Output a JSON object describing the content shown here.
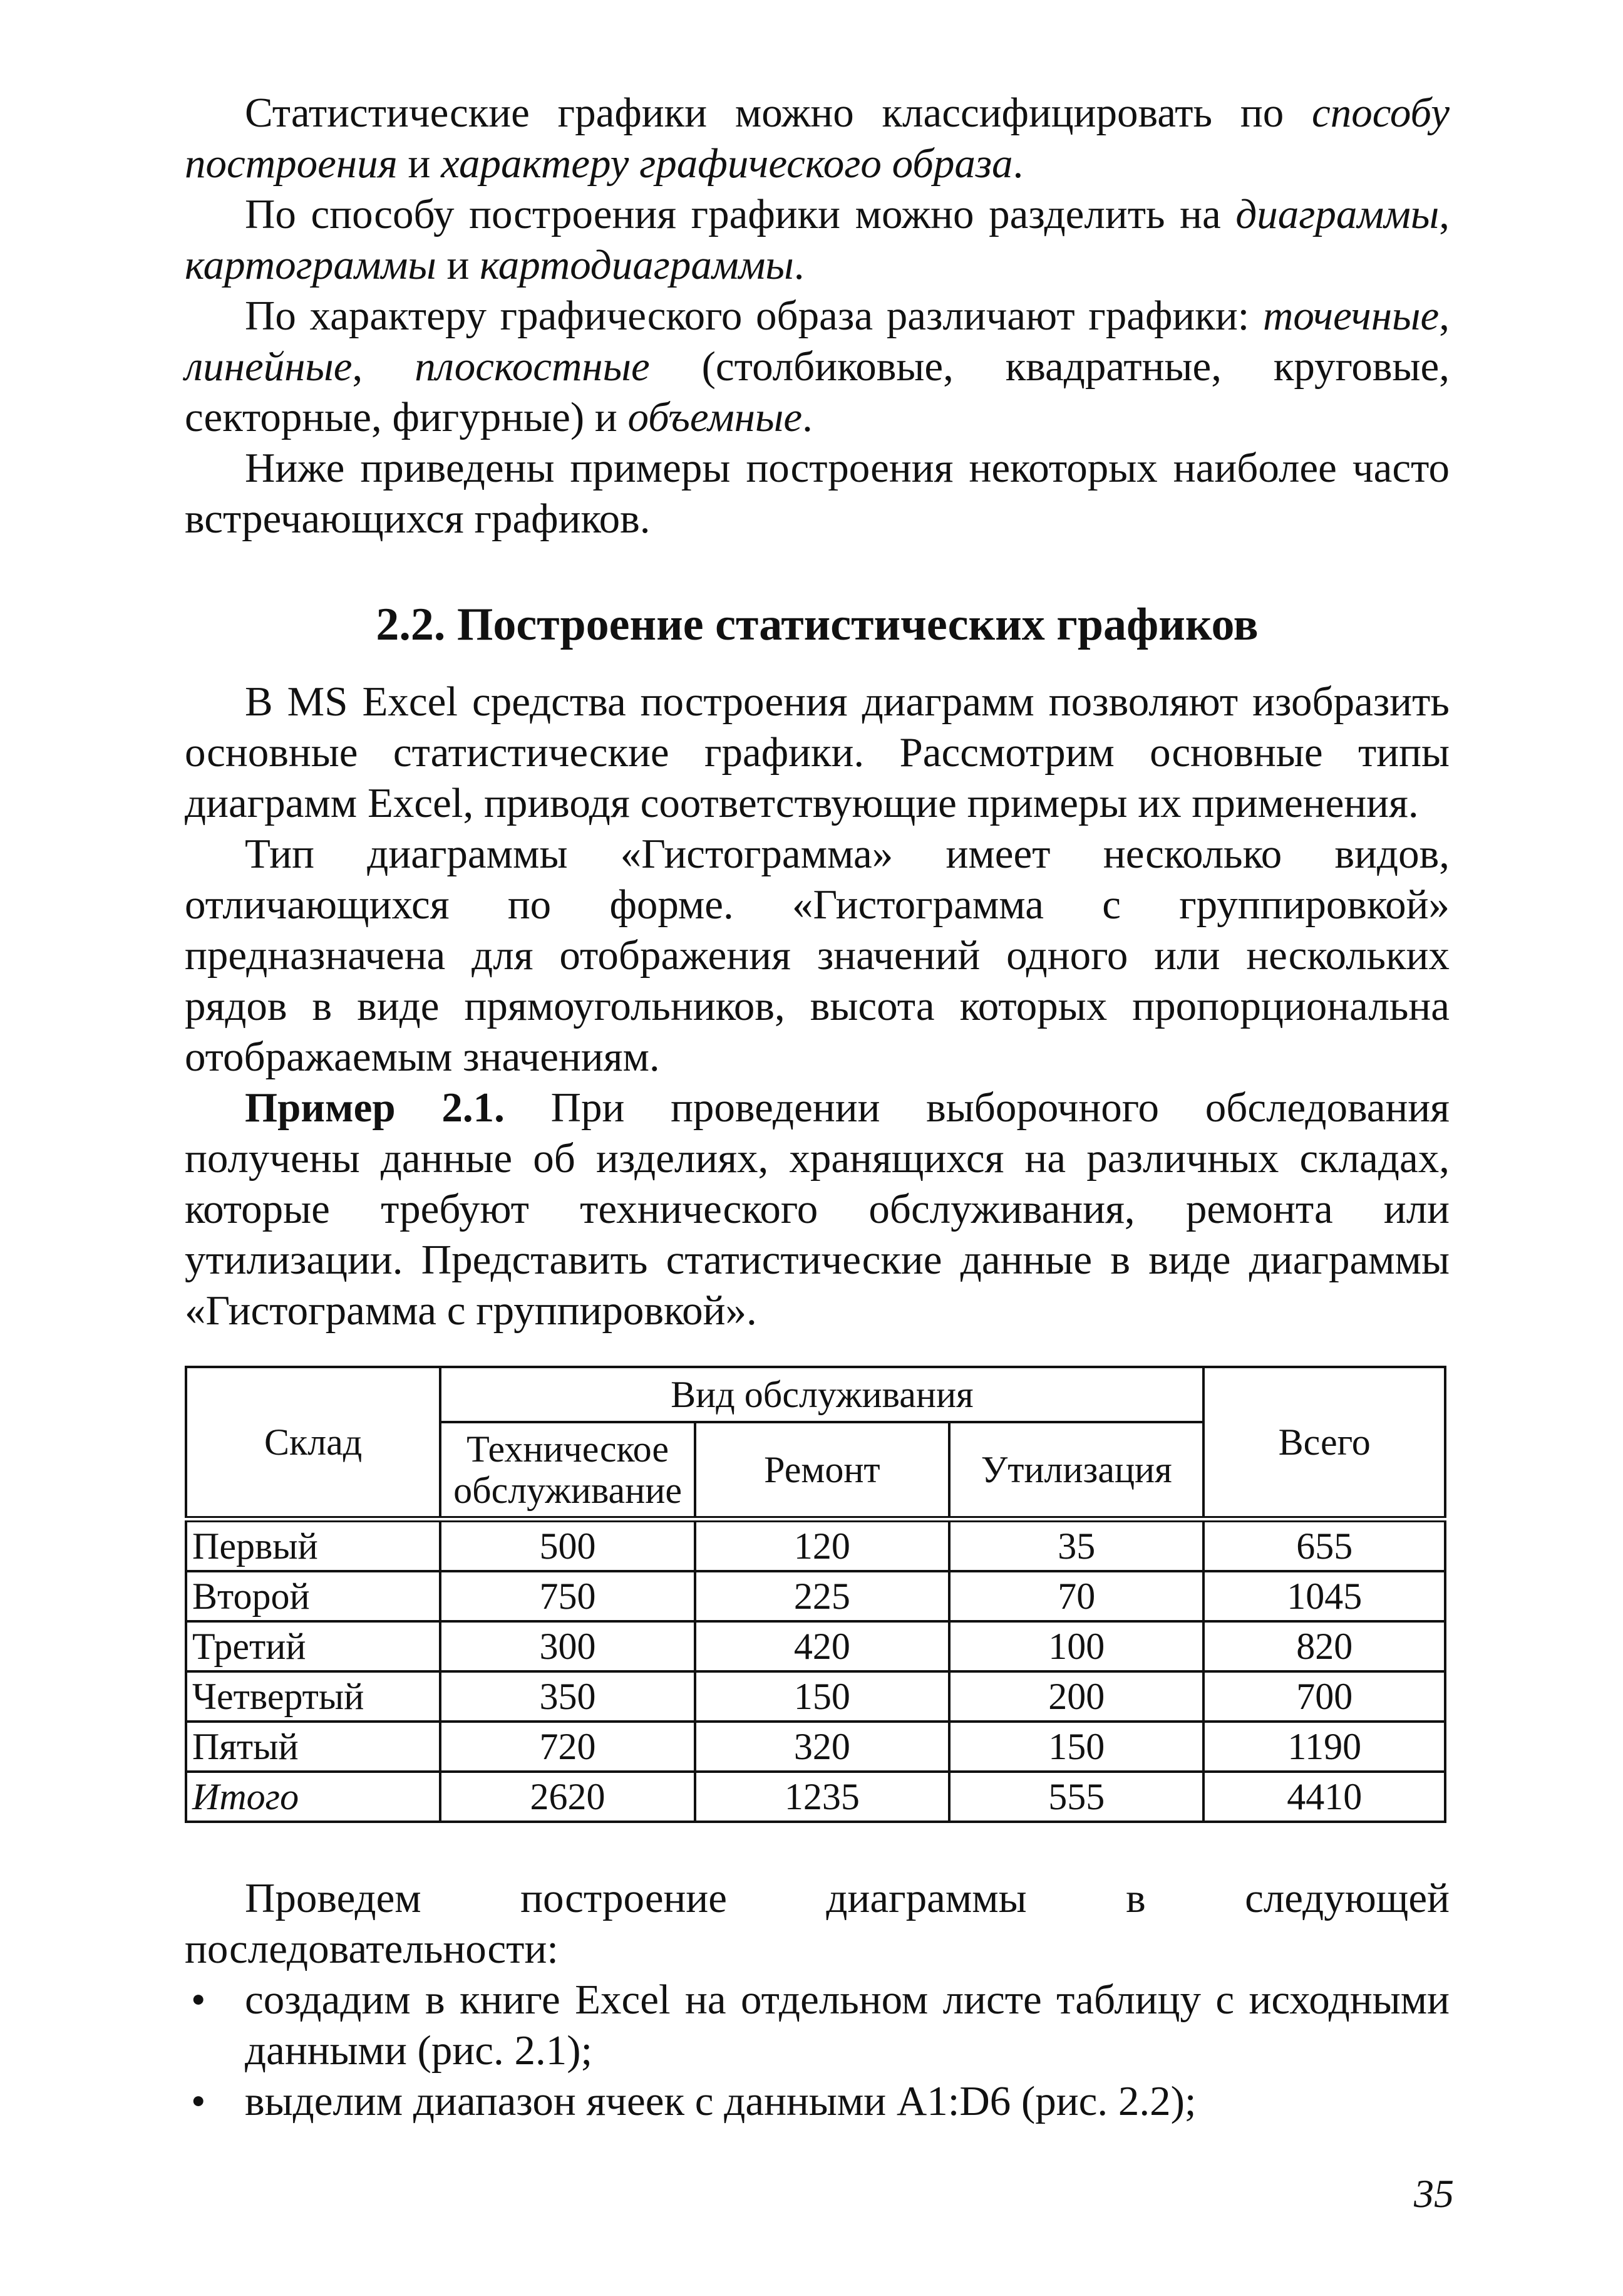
{
  "intro": {
    "p1": [
      "Статистические графики можно классифицировать по ",
      "способу построения",
      " и ",
      "характеру графического образа",
      "."
    ],
    "p2": [
      "По способу построения графики можно разделить на ",
      "диаграммы",
      ", ",
      "картограммы",
      " и ",
      "картодиаграммы",
      "."
    ],
    "p3": [
      "По характеру графического образа различают графики: ",
      "точечные",
      ", ",
      "линейные",
      ", ",
      "плоскостные",
      " (столбиковые, квадратные, круговые, секторные, фигурные) и ",
      "объемные",
      "."
    ],
    "p4": "Ниже приведены примеры построения некоторых наиболее часто встречающихся графиков."
  },
  "section": {
    "title": "2.2. Построение статистических графиков",
    "p1": "В MS Excel средства построения диаграмм позволяют изобразить основные статистические графики. Рассмотрим основные типы диаграмм Excel, приводя соответствующие примеры их применения.",
    "p2": "Тип диаграммы «Гистограмма» имеет несколько видов, отличающихся по форме. «Гистограмма с группировкой» предназначена для отображения значений одного или нескольких рядов в виде прямоугольников, высота которых пропорциональна отображаемым значениям.",
    "example_label": "Пример 2.1.",
    "example_text": " При проведении выборочного обследования получены данные об изделиях, хранящихся на различных складах, которые требуют технического обслуживания, ремонта или утилизации. Представить статистические данные в виде диаграммы «Гистограмма с группировкой»."
  },
  "table": {
    "headers": {
      "warehouse": "Склад",
      "group": "Вид обслуживания",
      "maintenance": "Техническое обслуживание",
      "repair": "Ремонт",
      "disposal": "Утилизация",
      "total": "Всего"
    },
    "rows": [
      [
        "Первый",
        "500",
        "120",
        "35",
        "655"
      ],
      [
        "Второй",
        "750",
        "225",
        "70",
        "1045"
      ],
      [
        "Третий",
        "300",
        "420",
        "100",
        "820"
      ],
      [
        "Четвертый",
        "350",
        "150",
        "200",
        "700"
      ],
      [
        "Пятый",
        "720",
        "320",
        "150",
        "1190"
      ],
      [
        "Итого",
        "2620",
        "1235",
        "555",
        "4410"
      ]
    ]
  },
  "after": {
    "p1": "Проведем построение диаграммы в следующей последовательности:",
    "bullets": [
      "создадим в книге Excel на отдельном листе таблицу с исходными данными (рис. 2.1);",
      "выделим диапазон ячеек с данными A1:D6 (рис. 2.2);"
    ]
  },
  "page_number": "35"
}
